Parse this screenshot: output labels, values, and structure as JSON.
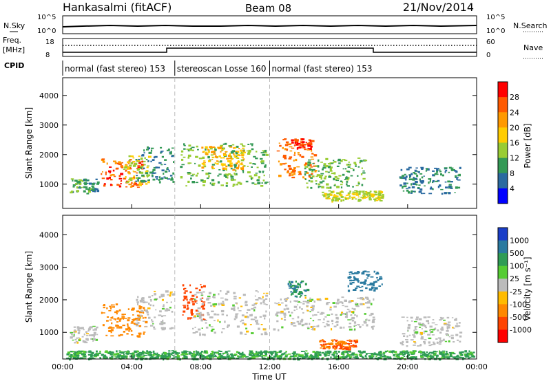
{
  "header": {
    "station": "Hankasalmi (fitACF)",
    "beam": "Beam 08",
    "date": "21/Nov/2014"
  },
  "nsky_panel": {
    "left_label": "N.Sky",
    "right_label": "N.Search",
    "ticks": [
      "10^5",
      "10^0"
    ],
    "right_ticks": [
      "10^5",
      "10^0"
    ]
  },
  "freq_panel": {
    "left_label_line1": "Freq.",
    "left_label_line2": "[MHz]",
    "left_ticks": [
      "18",
      "8"
    ],
    "right_ticks": [
      "60",
      "0"
    ],
    "right_label": "Nave",
    "cpid_label": "CPID"
  },
  "cpid_segments": [
    {
      "start_hour": 0,
      "end_hour": 6.5,
      "label": "normal (fast stereo) 153"
    },
    {
      "start_hour": 6.5,
      "end_hour": 12,
      "label": "stereoscan Losse 160"
    },
    {
      "start_hour": 12,
      "end_hour": 24,
      "label": "normal (fast stereo) 153"
    }
  ],
  "x_axis": {
    "label": "Time UT",
    "range_hours": [
      0,
      24
    ],
    "ticks": [
      {
        "hour": 0,
        "label": "00:00"
      },
      {
        "hour": 4,
        "label": "04:00"
      },
      {
        "hour": 8,
        "label": "08:00"
      },
      {
        "hour": 12,
        "label": "12:00"
      },
      {
        "hour": 16,
        "label": "16:00"
      },
      {
        "hour": 20,
        "label": "20:00"
      },
      {
        "hour": 24,
        "label": "00:00"
      }
    ]
  },
  "y_axis": {
    "label": "Slant Range [km]",
    "range_km": [
      180,
      4600
    ],
    "ticks": [
      "1000",
      "2000",
      "3000",
      "4000"
    ],
    "tick_values": [
      1000,
      2000,
      3000,
      4000
    ]
  },
  "power_colorbar": {
    "label": "Power [dB]",
    "ticks": [
      "28",
      "24",
      "20",
      "16",
      "12",
      "8",
      "4"
    ],
    "colors": [
      "#ff0000",
      "#ff5a00",
      "#ff9900",
      "#ffcc00",
      "#99cc33",
      "#339955",
      "#2a6aa0",
      "#0000ff"
    ]
  },
  "velocity_colorbar": {
    "label": "Velocity [m s⁻¹]",
    "ticks": [
      "1000",
      "500",
      "100",
      "25",
      "-25",
      "-100",
      "-500",
      "-1000"
    ],
    "colors": [
      "#1a3ec8",
      "#2a7aa0",
      "#2f9c55",
      "#55cc33",
      "#bbbbbb",
      "#ffbb00",
      "#ff8800",
      "#ff4400",
      "#ff0000"
    ]
  },
  "chart_data": [
    {
      "type": "heatmap",
      "title": "Power",
      "xlabel": "Time UT",
      "ylabel": "Slant Range [km]",
      "xlim": [
        0,
        24
      ],
      "ylim": [
        180,
        4600
      ],
      "colorbar_label": "Power [dB]",
      "regions": [
        {
          "t0": 0.4,
          "t1": 2.0,
          "r0": 700,
          "r1": 1200,
          "value_db": 10
        },
        {
          "t0": 2.2,
          "t1": 4.6,
          "r0": 900,
          "r1": 1900,
          "value_db": 26
        },
        {
          "t0": 3.5,
          "t1": 5.0,
          "r0": 1000,
          "r1": 2000,
          "value_db": 16
        },
        {
          "t0": 4.2,
          "t1": 6.4,
          "r0": 1100,
          "r1": 2300,
          "value_db": 8
        },
        {
          "t0": 6.8,
          "t1": 11.8,
          "r0": 950,
          "r1": 2400,
          "value_db": 12
        },
        {
          "t0": 8.0,
          "t1": 10.5,
          "r0": 1500,
          "r1": 2300,
          "value_db": 20
        },
        {
          "t0": 12.4,
          "t1": 14.6,
          "r0": 1200,
          "r1": 2600,
          "value_db": 24
        },
        {
          "t0": 13.2,
          "t1": 14.4,
          "r0": 2200,
          "r1": 2550,
          "value_db": 28
        },
        {
          "t0": 14.0,
          "t1": 17.5,
          "r0": 900,
          "r1": 1900,
          "value_db": 12
        },
        {
          "t0": 15.0,
          "t1": 18.5,
          "r0": 450,
          "r1": 800,
          "value_db": 16
        },
        {
          "t0": 19.5,
          "t1": 23.0,
          "r0": 700,
          "r1": 1600,
          "value_db": 8
        }
      ]
    },
    {
      "type": "heatmap",
      "title": "Velocity",
      "xlabel": "Time UT",
      "ylabel": "Slant Range [km]",
      "xlim": [
        0,
        24
      ],
      "ylim": [
        180,
        4600
      ],
      "colorbar_label": "Velocity [m s⁻¹]",
      "regions": [
        {
          "t0": 0.2,
          "t1": 23.8,
          "r0": 200,
          "r1": 450,
          "value_ms": 75
        },
        {
          "t0": 0.4,
          "t1": 2.0,
          "r0": 700,
          "r1": 1200,
          "value_ms": 0
        },
        {
          "t0": 2.2,
          "t1": 4.8,
          "r0": 900,
          "r1": 1900,
          "value_ms": -250
        },
        {
          "t0": 4.2,
          "t1": 6.4,
          "r0": 1100,
          "r1": 2300,
          "value_ms": 0
        },
        {
          "t0": 6.8,
          "t1": 8.2,
          "r0": 1400,
          "r1": 2500,
          "value_ms": -400
        },
        {
          "t0": 7.5,
          "t1": 11.8,
          "r0": 950,
          "r1": 2300,
          "value_ms": 0
        },
        {
          "t0": 12.2,
          "t1": 18.0,
          "r0": 1100,
          "r1": 2100,
          "value_ms": 0
        },
        {
          "t0": 13.0,
          "t1": 14.2,
          "r0": 2100,
          "r1": 2600,
          "value_ms": 300
        },
        {
          "t0": 14.8,
          "t1": 17.0,
          "r0": 500,
          "r1": 800,
          "value_ms": -300
        },
        {
          "t0": 16.5,
          "t1": 18.5,
          "r0": 2300,
          "r1": 2900,
          "value_ms": 500
        },
        {
          "t0": 19.5,
          "t1": 23.0,
          "r0": 600,
          "r1": 1500,
          "value_ms": 0
        }
      ]
    }
  ]
}
